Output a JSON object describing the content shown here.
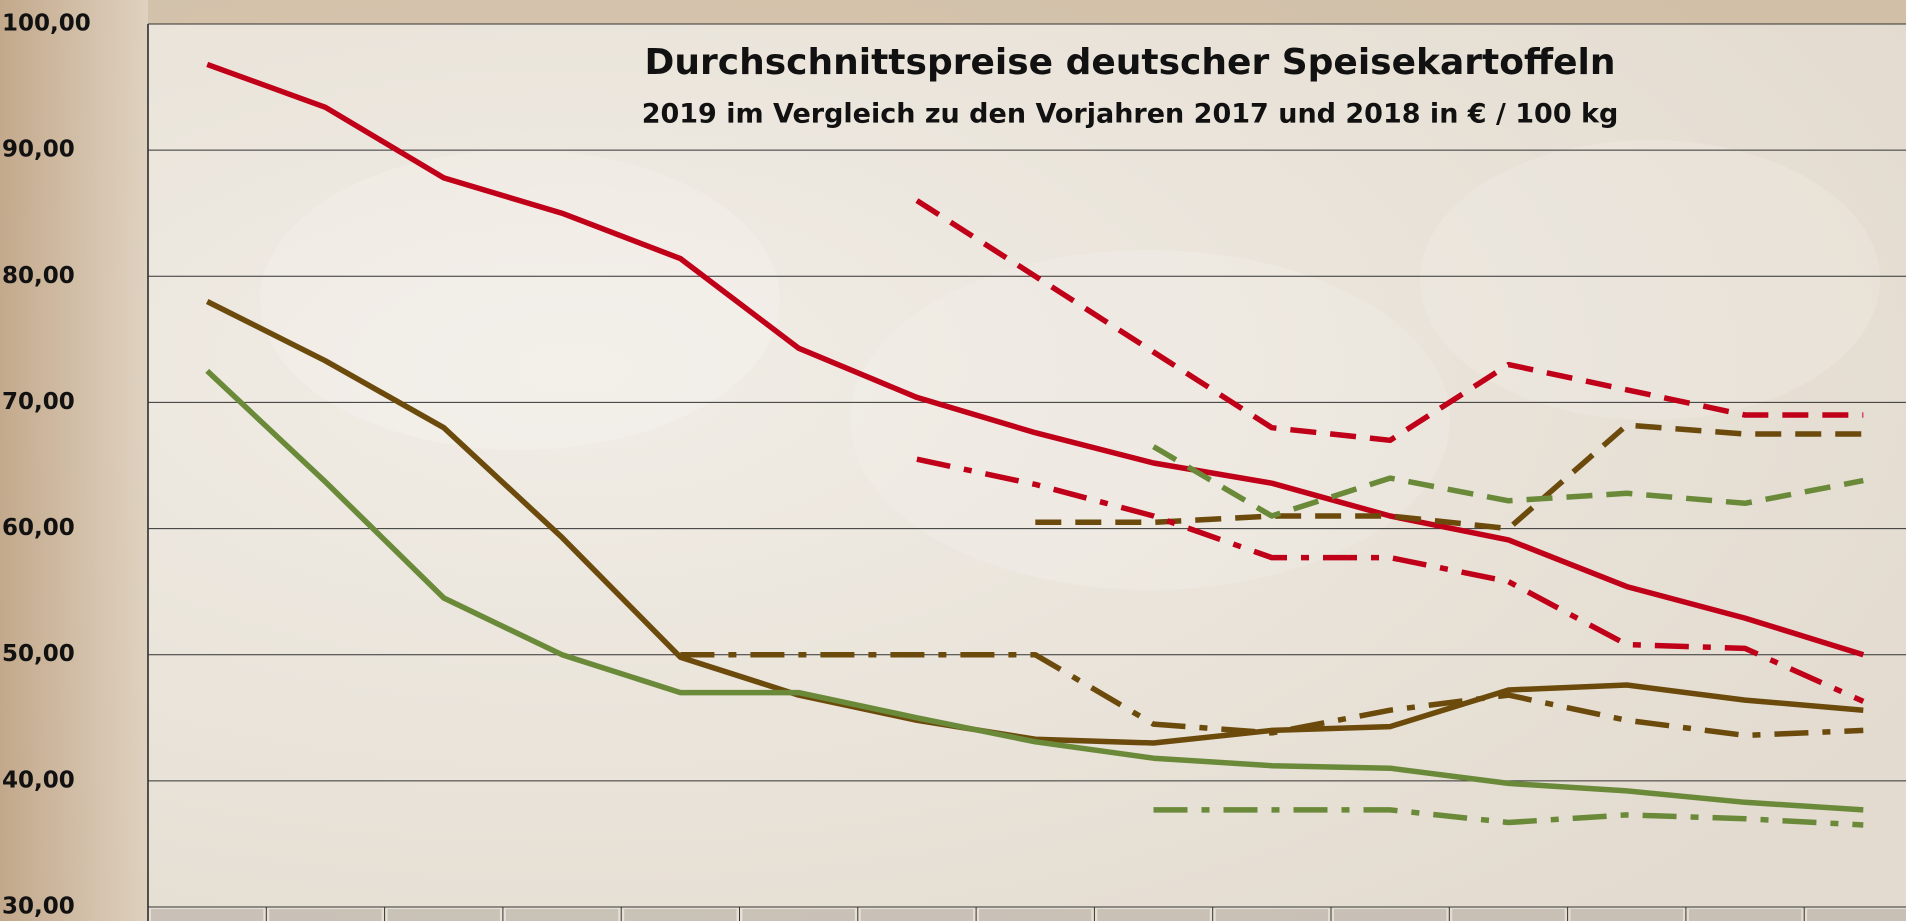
{
  "chart_data": {
    "type": "line",
    "title": "Durchschnittspreise deutscher Speisekartoffeln",
    "subtitle": "2019 im Vergleich zu den Vorjahren 2017 und 2018 in € / 100 kg",
    "categories": [
      null,
      null,
      null,
      null,
      null,
      null,
      null,
      null,
      null,
      null,
      null,
      null,
      null,
      null,
      null
    ],
    "ylim": [
      30,
      100
    ],
    "yticks": [
      {
        "value": 30,
        "label": "30,00"
      },
      {
        "value": 40,
        "label": "40,00"
      },
      {
        "value": 50,
        "label": "50,00"
      },
      {
        "value": 60,
        "label": "60,00"
      },
      {
        "value": 70,
        "label": "70,00"
      },
      {
        "value": 80,
        "label": "80,00"
      },
      {
        "value": 90,
        "label": "90,00"
      },
      {
        "value": 100,
        "label": "100,00"
      }
    ],
    "grid": true,
    "series": [
      {
        "color": "#c00018",
        "style": "solid",
        "values": [
          96.8,
          93.4,
          87.8,
          85,
          81.4,
          74.3,
          70.4,
          67.6,
          65.2,
          63.6,
          61,
          59.1,
          55.4,
          52.9,
          50
        ]
      },
      {
        "color": "#6b4a0c",
        "style": "solid",
        "values": [
          78,
          73.3,
          68,
          59.3,
          49.8,
          46.8,
          44.8,
          43.3,
          43,
          44,
          44.3,
          47.2,
          47.6,
          46.4,
          45.6
        ]
      },
      {
        "color": "#6a8a3a",
        "style": "solid",
        "values": [
          72.5,
          63.7,
          54.5,
          50,
          47,
          47,
          45,
          43.1,
          41.8,
          41.2,
          41,
          39.8,
          39.2,
          38.3,
          37.7
        ]
      },
      {
        "color": "#c00018",
        "style": "dashed",
        "values": [
          null,
          null,
          null,
          null,
          null,
          null,
          86,
          80,
          74,
          68,
          67,
          73,
          71,
          69,
          69
        ]
      },
      {
        "color": "#6b4a0c",
        "style": "dashed",
        "values": [
          null,
          null,
          null,
          null,
          null,
          null,
          null,
          60.5,
          60.5,
          61,
          61,
          60,
          68.2,
          67.5,
          67.5
        ]
      },
      {
        "color": "#6a8a3a",
        "style": "dashed",
        "values": [
          null,
          null,
          null,
          null,
          null,
          null,
          null,
          null,
          66.5,
          61,
          64,
          62.2,
          62.8,
          62,
          63.8
        ]
      },
      {
        "color": "#c00018",
        "style": "dashdot",
        "values": [
          null,
          null,
          null,
          null,
          null,
          null,
          65.5,
          63.5,
          61,
          57.7,
          57.7,
          55.8,
          50.8,
          50.5,
          46.3
        ]
      },
      {
        "color": "#6b4a0c",
        "style": "dashdot",
        "values": [
          null,
          null,
          null,
          null,
          50,
          50,
          50,
          50,
          44.5,
          43.8,
          45.6,
          46.8,
          44.8,
          43.6,
          44
        ]
      },
      {
        "color": "#6a8a3a",
        "style": "dashdot",
        "values": [
          null,
          null,
          null,
          null,
          null,
          null,
          null,
          null,
          37.7,
          37.7,
          37.7,
          36.7,
          37.3,
          37,
          36.5
        ]
      }
    ]
  }
}
